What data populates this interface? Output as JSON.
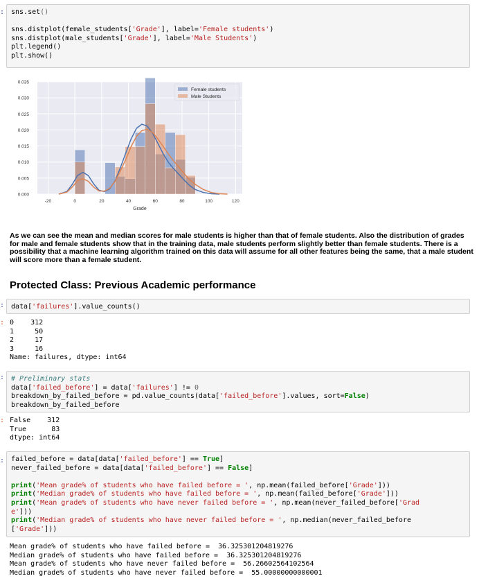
{
  "cells": {
    "c1": {
      "prompt": ":",
      "lines": [
        "sns.set()",
        "",
        "sns.distplot(female_students['Grade'], label='Female students')",
        "sns.distplot(male_students['Grade'], label='Male Students')",
        "plt.legend()",
        "plt.show()"
      ]
    },
    "md1": "As we can see the mean and median scores for male students is higher than that of female students. Also the distribution of grades for male and female students show that in the training data, male students perform slightly better than female students. There is a possibility that a machine learning algorithm trained on this data will assume for all other features being the same, that a male student will score more than a female student.",
    "heading": "Protected Class: Previous Academic performance",
    "c2": {
      "prompt": ":",
      "code": "data['failures'].value_counts()",
      "out_prompt": ":",
      "output": [
        "0    312",
        "1     50",
        "2     17",
        "3     16",
        "Name: failures, dtype: int64"
      ]
    },
    "c3": {
      "prompt": ":",
      "comment": "# Preliminary stats",
      "lines": [
        "data['failed_before'] = data['failures'] != 0",
        "breakdown_by_failed_before = pd.value_counts(data['failed_before'].values, sort=False)",
        "breakdown_by_failed_before"
      ],
      "out_prompt": ":",
      "output": [
        "False    312",
        "True      83",
        "dtype: int64"
      ]
    },
    "c4": {
      "prompt": ":",
      "lines": [
        "failed_before = data[data['failed_before'] == True]",
        "never_failed_before = data[data['failed_before'] == False]",
        "",
        "print('Mean grade% of students who have failed before = ', np.mean(failed_before['Grade']))",
        "print('Median grade% of students who have failed before = ', np.mean(failed_before['Grade']))",
        "print('Mean grade% of students who have never failed before = ', np.mean(never_failed_before['Grad",
        "e']))",
        "print('Median grade% of students who have never failed before = ', np.median(never_failed_before",
        "['Grade']))"
      ],
      "output": [
        "Mean grade% of students who have failed before =  36.325301204819276",
        "Median grade% of students who have failed before =  36.325301204819276",
        "Mean grade% of students who have never failed before =  56.26602564102564",
        "Median grade% of students who have never failed before =  55.00000000000001"
      ]
    }
  },
  "chart_data": {
    "type": "bar",
    "title": "",
    "xlabel": "Grade",
    "ylabel": "",
    "xlim": [
      -28,
      125
    ],
    "ylim": [
      0,
      0.035
    ],
    "xticks": [
      -20,
      0,
      20,
      40,
      60,
      80,
      100,
      120
    ],
    "yticks": [
      "0.000",
      "0.005",
      "0.010",
      "0.015",
      "0.020",
      "0.025",
      "0.030",
      "0.035"
    ],
    "grid": true,
    "legend_position": "top-right",
    "colors": {
      "female": "#4c72b0",
      "male": "#dd8452",
      "background": "#eaeaf2"
    },
    "series": [
      {
        "name": "Female students",
        "histogram": [
          {
            "x0": 0,
            "x1": 7.5,
            "h": 0.0138
          },
          {
            "x0": 22.5,
            "x1": 30,
            "h": 0.0098
          },
          {
            "x0": 30,
            "x1": 37.5,
            "h": 0.0055
          },
          {
            "x0": 37.5,
            "x1": 45,
            "h": 0.0048
          },
          {
            "x0": 45,
            "x1": 52.5,
            "h": 0.0192
          },
          {
            "x0": 52.5,
            "x1": 60,
            "h": 0.0362
          },
          {
            "x0": 60,
            "x1": 67.5,
            "h": 0.0125
          },
          {
            "x0": 67.5,
            "x1": 75,
            "h": 0.0192
          },
          {
            "x0": 75,
            "x1": 82.5,
            "h": 0.0108
          },
          {
            "x0": 82.5,
            "x1": 90,
            "h": 0.0052
          }
        ],
        "kde": {
          "x": [
            -12,
            -6,
            -2,
            2,
            6,
            10,
            14,
            18,
            22,
            26,
            30,
            34,
            38,
            42,
            46,
            50,
            54,
            58,
            62,
            66,
            70,
            74,
            78,
            82,
            86,
            90,
            96,
            102,
            108
          ],
          "y": [
            0.0,
            0.0008,
            0.003,
            0.0058,
            0.0068,
            0.0058,
            0.0032,
            0.0012,
            0.0008,
            0.0016,
            0.0042,
            0.0082,
            0.0128,
            0.0172,
            0.0205,
            0.0218,
            0.0212,
            0.019,
            0.0158,
            0.0125,
            0.0098,
            0.0078,
            0.006,
            0.0042,
            0.0026,
            0.0014,
            0.0005,
            0.0001,
            0.0
          ]
        }
      },
      {
        "name": "Male Students",
        "histogram": [
          {
            "x0": 0,
            "x1": 7.5,
            "h": 0.01
          },
          {
            "x0": 30,
            "x1": 37.5,
            "h": 0.0085
          },
          {
            "x0": 37.5,
            "x1": 45,
            "h": 0.0148
          },
          {
            "x0": 45,
            "x1": 52.5,
            "h": 0.0148
          },
          {
            "x0": 52.5,
            "x1": 60,
            "h": 0.0282
          },
          {
            "x0": 60,
            "x1": 67.5,
            "h": 0.0218
          },
          {
            "x0": 67.5,
            "x1": 75,
            "h": 0.0082
          },
          {
            "x0": 75,
            "x1": 82.5,
            "h": 0.0185
          },
          {
            "x0": 82.5,
            "x1": 90,
            "h": 0.0058
          }
        ],
        "kde": {
          "x": [
            -12,
            -6,
            -2,
            2,
            6,
            10,
            14,
            18,
            22,
            26,
            30,
            34,
            38,
            42,
            46,
            50,
            54,
            58,
            62,
            66,
            70,
            74,
            78,
            82,
            86,
            90,
            96,
            102,
            108,
            114
          ],
          "y": [
            0.0,
            0.0006,
            0.0022,
            0.0042,
            0.0048,
            0.004,
            0.0022,
            0.001,
            0.0009,
            0.0018,
            0.004,
            0.0072,
            0.0108,
            0.0148,
            0.018,
            0.0198,
            0.0202,
            0.0192,
            0.0172,
            0.0148,
            0.0124,
            0.0102,
            0.0082,
            0.0062,
            0.0044,
            0.003,
            0.0014,
            0.0005,
            0.0001,
            0.0
          ]
        }
      }
    ]
  }
}
